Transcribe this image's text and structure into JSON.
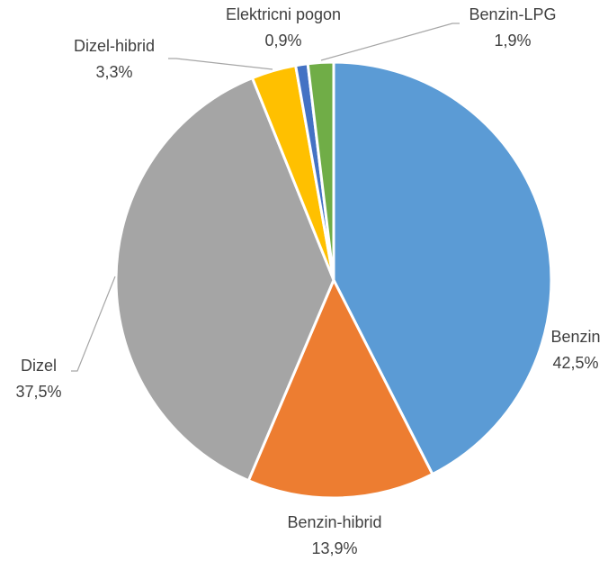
{
  "chart_data": {
    "type": "pie",
    "title": "",
    "legend": "none",
    "slices": [
      {
        "category": "Benzin",
        "value": 42.5,
        "value_label": "42,5%",
        "color": "#5b9bd5"
      },
      {
        "category": "Benzin-hibrid",
        "value": 13.9,
        "value_label": "13,9%",
        "color": "#ed7d31"
      },
      {
        "category": "Dizel",
        "value": 37.5,
        "value_label": "37,5%",
        "color": "#a5a5a5"
      },
      {
        "category": "Dizel-hibrid",
        "value": 3.3,
        "value_label": "3,3%",
        "color": "#ffc000"
      },
      {
        "category": "Elektricni pogon",
        "value": 0.9,
        "value_label": "0,9%",
        "color": "#4472c4"
      },
      {
        "category": "Benzin-LPG",
        "value": 1.9,
        "value_label": "1,9%",
        "color": "#70ad47"
      }
    ]
  }
}
